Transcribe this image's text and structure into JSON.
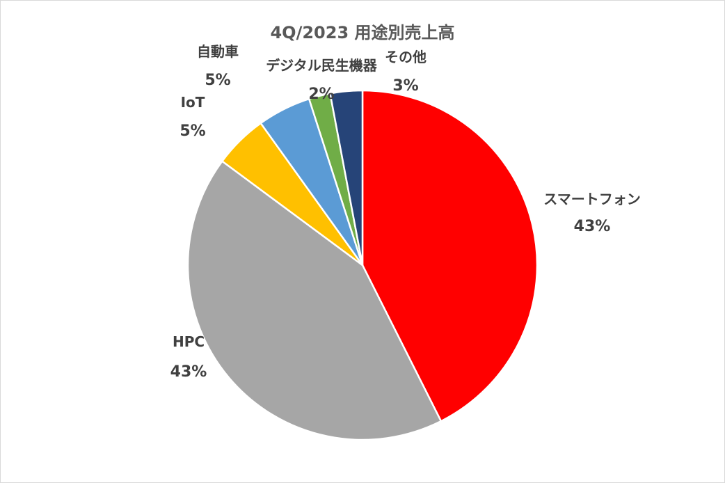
{
  "chart_data": {
    "type": "pie",
    "title": "4Q/2023  用途別売上高",
    "slices": [
      {
        "label": "スマートフォン",
        "value": 43,
        "display": "43%",
        "color": "#ff0000"
      },
      {
        "label": "HPC",
        "value": 43,
        "display": "43%",
        "color": "#a6a6a6"
      },
      {
        "label": "IoT",
        "value": 5,
        "display": "5%",
        "color": "#ffc000"
      },
      {
        "label": "自動車",
        "value": 5,
        "display": "5%",
        "color": "#5b9bd5"
      },
      {
        "label": "デジタル民生機器",
        "value": 2,
        "display": "2%",
        "color": "#70ad47"
      },
      {
        "label": "その他",
        "value": 3,
        "display": "3%",
        "color": "#264478"
      }
    ],
    "start_angle_deg": 0,
    "direction": "clockwise",
    "data_labels": "outside"
  }
}
